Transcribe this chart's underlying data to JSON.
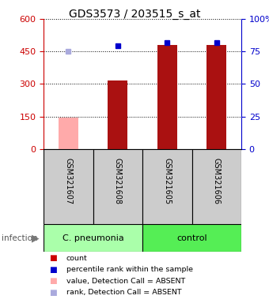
{
  "title": "GDS3573 / 203515_s_at",
  "samples": [
    "GSM321607",
    "GSM321608",
    "GSM321605",
    "GSM321606"
  ],
  "bar_values": [
    145,
    315,
    480,
    480
  ],
  "bar_colors": [
    "#ffaaaa",
    "#aa1111",
    "#aa1111",
    "#aa1111"
  ],
  "percentile_values": [
    450,
    475,
    490,
    490
  ],
  "percentile_colors": [
    "#aaaadd",
    "#0000cc",
    "#0000cc",
    "#0000cc"
  ],
  "groups": [
    {
      "label": "C. pneumonia",
      "indices": [
        0,
        1
      ],
      "color": "#aaffaa"
    },
    {
      "label": "control",
      "indices": [
        2,
        3
      ],
      "color": "#55ee55"
    }
  ],
  "left_ylim": [
    0,
    600
  ],
  "left_yticks": [
    0,
    150,
    300,
    450,
    600
  ],
  "right_ylim": [
    0,
    100
  ],
  "right_yticks": [
    0,
    25,
    50,
    75,
    100
  ],
  "right_yticklabels": [
    "0",
    "25",
    "50",
    "75",
    "100%"
  ],
  "left_ycolor": "#cc0000",
  "right_ycolor": "#0000cc",
  "bar_width": 0.4,
  "infection_label": "infection",
  "legend_items": [
    {
      "color": "#cc0000",
      "label": "count"
    },
    {
      "color": "#0000cc",
      "label": "percentile rank within the sample"
    },
    {
      "color": "#ffaaaa",
      "label": "value, Detection Call = ABSENT"
    },
    {
      "color": "#aaaadd",
      "label": "rank, Detection Call = ABSENT"
    }
  ],
  "background_color": "#ffffff",
  "sample_bg": "#cccccc",
  "plot_bg_color": "#ffffff"
}
